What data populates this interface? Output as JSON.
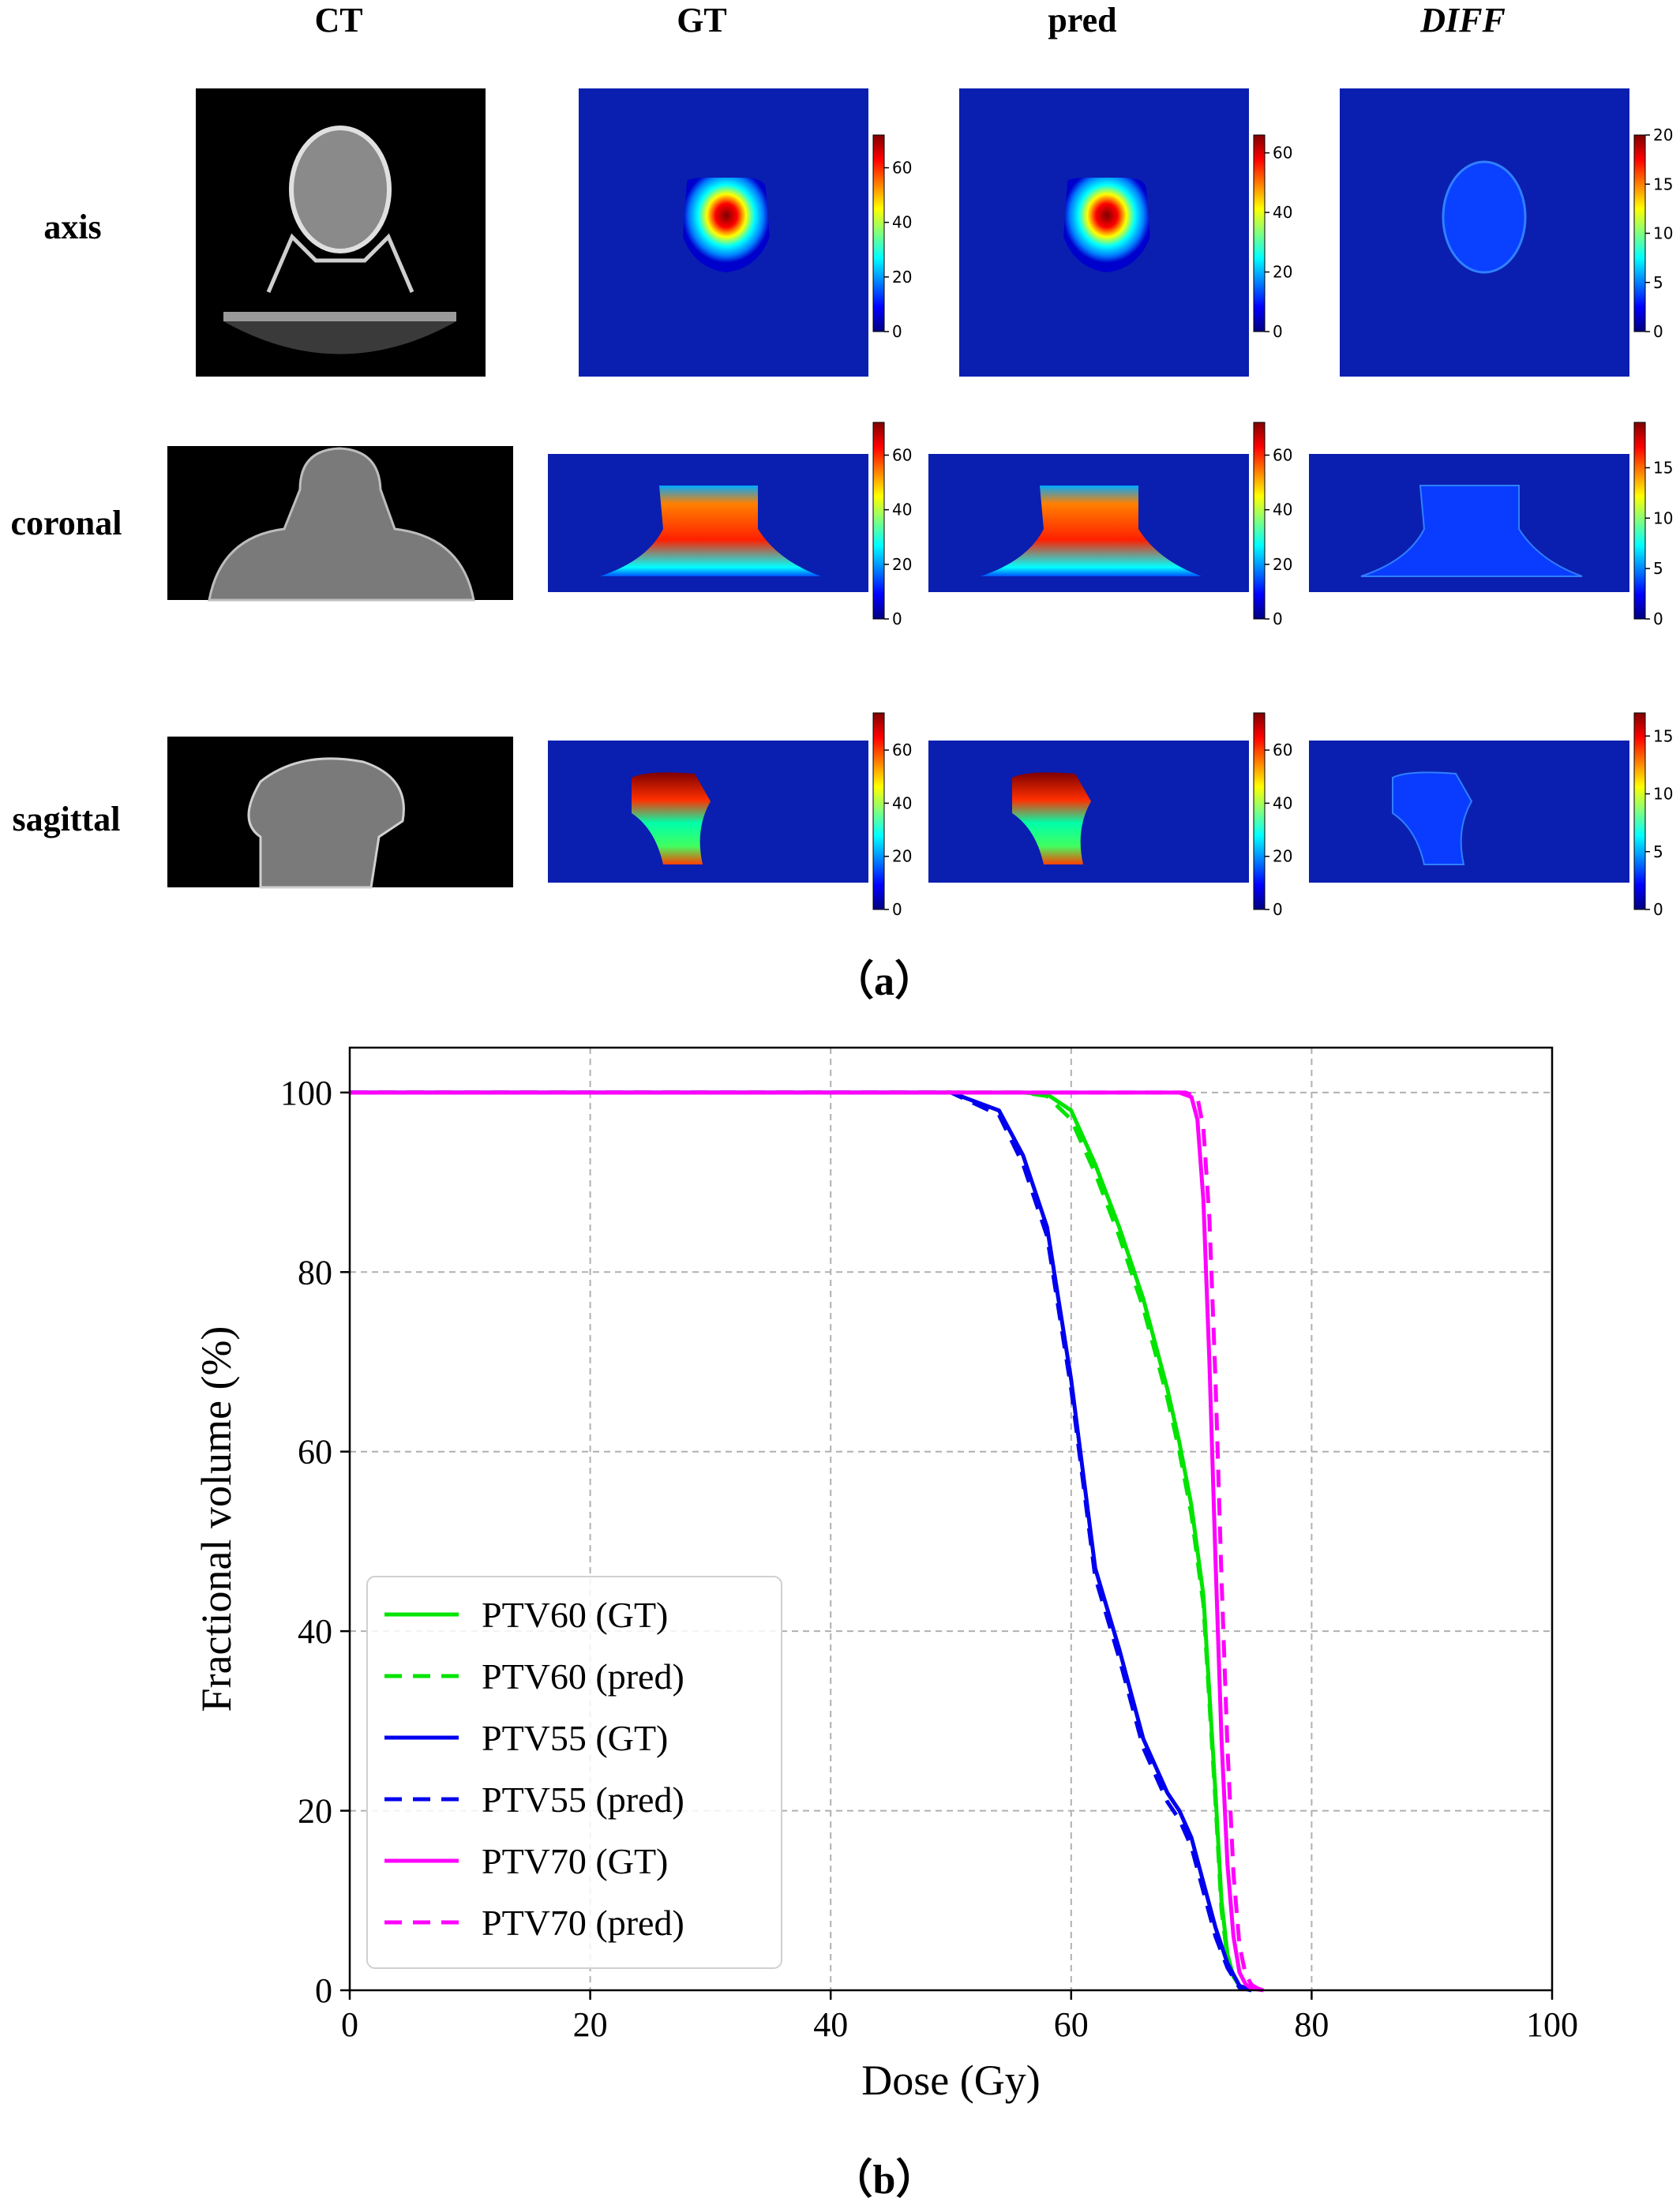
{
  "panel_a": {
    "label": "（a）",
    "columns": [
      "CT",
      "GT",
      "pred",
      "DIFF"
    ],
    "rows": [
      "axis",
      "coronal",
      "sagittal"
    ],
    "colorbar_ticks": [
      [
        [
          0,
          20,
          40,
          60
        ],
        [
          0,
          20,
          40,
          60
        ],
        [
          0,
          5,
          10,
          15,
          20
        ]
      ],
      [
        [
          0,
          20,
          40,
          60
        ],
        [
          0,
          20,
          40,
          60
        ],
        [
          0,
          5,
          10,
          15
        ]
      ],
      [
        [
          0,
          20,
          40,
          60
        ],
        [
          0,
          20,
          40,
          60
        ],
        [
          0,
          5,
          10,
          15
        ]
      ]
    ],
    "colorbar_max": [
      [
        72,
        66,
        20
      ],
      [
        72,
        72,
        19.5
      ],
      [
        74,
        74,
        17
      ]
    ],
    "colormap": [
      "#00007f",
      "#0000ff",
      "#007fff",
      "#00ffff",
      "#7fff7f",
      "#ffff00",
      "#ff7f00",
      "#ff0000",
      "#7f0000"
    ],
    "ct_colors": {
      "background": "#000000",
      "tissue": "#7a7a7a",
      "bone": "#d8d8d8"
    }
  },
  "panel_b": {
    "label": "（b）"
  },
  "chart_data": {
    "type": "line",
    "xlabel": "Dose (Gy)",
    "ylabel": "Fractional volume (%)",
    "xlim": [
      0,
      100
    ],
    "ylim": [
      0,
      105
    ],
    "xticks": [
      0,
      20,
      40,
      60,
      80,
      100
    ],
    "yticks": [
      0,
      20,
      40,
      60,
      80,
      100
    ],
    "grid": true,
    "legend_position": "lower-left",
    "series": [
      {
        "name": "PTV60 (GT)",
        "color": "#00e400",
        "style": "solid",
        "x": [
          0,
          56,
          58,
          60,
          62,
          64,
          66,
          68,
          69,
          70,
          71,
          72,
          72.5,
          73,
          73.5,
          74,
          75
        ],
        "y": [
          100,
          100,
          99.8,
          98,
          92,
          85,
          77,
          67,
          61,
          54,
          44,
          22,
          10,
          4,
          1.5,
          0.5,
          0
        ]
      },
      {
        "name": "PTV60 (pred)",
        "color": "#00e400",
        "style": "dashed",
        "x": [
          0,
          56,
          58,
          60,
          62,
          64,
          66,
          68,
          69,
          70,
          71,
          72,
          72.5,
          73,
          73.5,
          74,
          75
        ],
        "y": [
          100,
          100,
          99.6,
          97,
          91,
          84,
          76,
          66,
          60,
          53,
          43,
          21,
          9,
          3.5,
          1.2,
          0.3,
          0
        ]
      },
      {
        "name": "PTV55 (GT)",
        "color": "#0000ee",
        "style": "solid",
        "x": [
          0,
          50,
          54,
          56,
          58,
          60,
          62,
          64,
          66,
          68,
          69,
          70,
          71,
          72,
          73,
          74,
          75
        ],
        "y": [
          100,
          100,
          98,
          93,
          85,
          68,
          47,
          38,
          28,
          22,
          20,
          17,
          12,
          7,
          3,
          0.5,
          0
        ]
      },
      {
        "name": "PTV55 (pred)",
        "color": "#0000ee",
        "style": "dashed",
        "x": [
          0,
          50,
          54,
          56,
          58,
          60,
          62,
          64,
          66,
          68,
          69,
          70,
          71,
          72,
          73,
          74,
          75
        ],
        "y": [
          100,
          100,
          97.5,
          92,
          84,
          67,
          46,
          37,
          27,
          21,
          19,
          16,
          11,
          6,
          2.5,
          0.3,
          0
        ]
      },
      {
        "name": "PTV70 (GT)",
        "color": "#ff00ff",
        "style": "solid",
        "x": [
          0,
          69,
          70,
          70.5,
          71,
          71.5,
          72,
          72.5,
          73,
          73.5,
          74,
          74.5,
          75,
          76
        ],
        "y": [
          100,
          100,
          99.5,
          97,
          88,
          70,
          48,
          28,
          14,
          6,
          2,
          0.7,
          0.2,
          0
        ]
      },
      {
        "name": "PTV70 (pred)",
        "color": "#ff00ff",
        "style": "dashed",
        "x": [
          0,
          69.5,
          70.5,
          71,
          71.5,
          72,
          72.5,
          73,
          73.5,
          74,
          74.5,
          75,
          75.5,
          76
        ],
        "y": [
          100,
          100,
          99.5,
          96,
          86,
          68,
          46,
          27,
          13,
          5,
          1.8,
          0.6,
          0.2,
          0
        ]
      }
    ]
  }
}
